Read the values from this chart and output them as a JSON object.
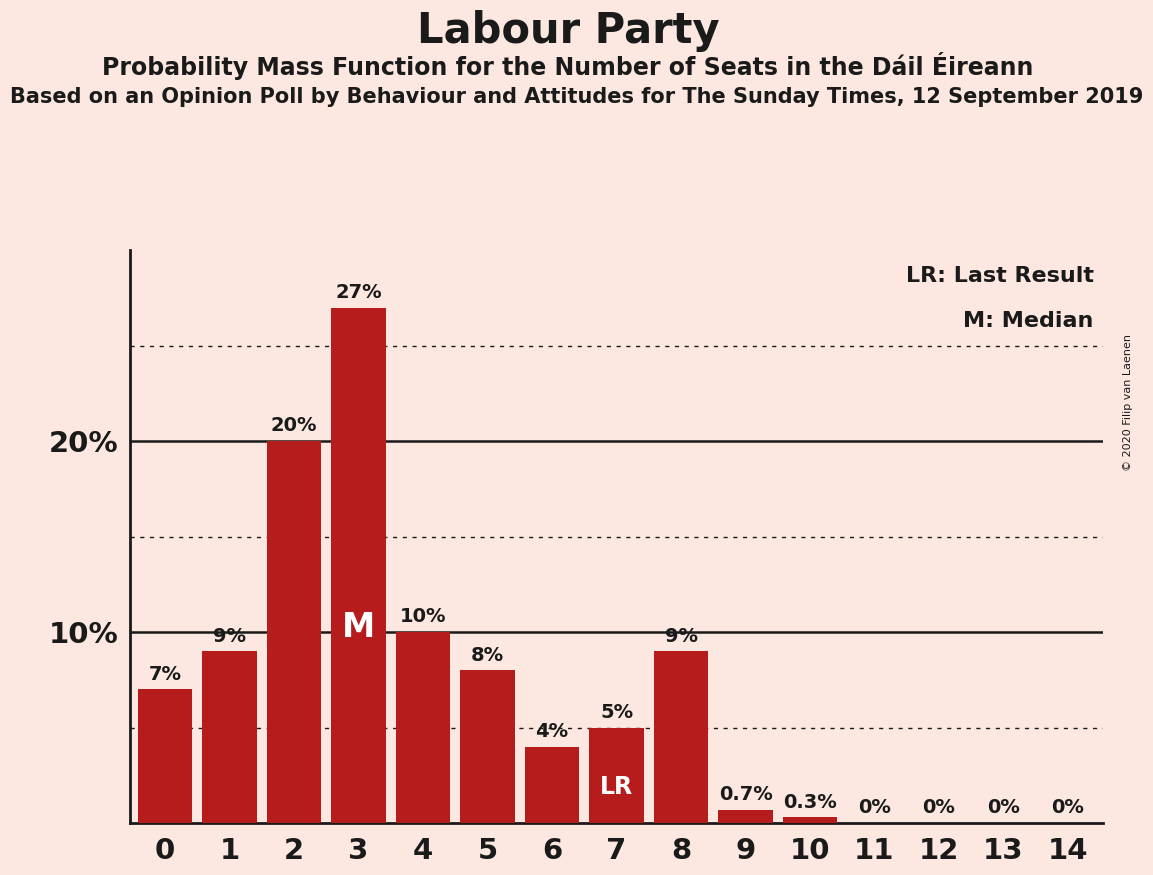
{
  "title": "Labour Party",
  "subtitle": "Probability Mass Function for the Number of Seats in the Dáil Éireann",
  "subtitle2": "Based on an Opinion Poll by Behaviour and Attitudes for The Sunday Times, 12 September 2019",
  "copyright": "© 2020 Filip van Laenen",
  "categories": [
    0,
    1,
    2,
    3,
    4,
    5,
    6,
    7,
    8,
    9,
    10,
    11,
    12,
    13,
    14
  ],
  "values": [
    7,
    9,
    20,
    27,
    10,
    8,
    4,
    5,
    9,
    0.7,
    0.3,
    0,
    0,
    0,
    0
  ],
  "bar_color": "#b71c1c",
  "background_color": "#fce8e0",
  "text_color": "#1a1a1a",
  "median_bar": 3,
  "lr_bar": 7,
  "dotted_lines": [
    5,
    15,
    25
  ],
  "solid_lines": [
    10,
    20
  ],
  "ylim": [
    0,
    30
  ],
  "legend_lr": "LR: Last Result",
  "legend_m": "M: Median",
  "title_fontsize": 30,
  "subtitle_fontsize": 17,
  "subtitle2_fontsize": 15,
  "bar_label_fontsize": 14,
  "tick_fontsize": 21,
  "inner_label_fontsize_M": 24,
  "inner_label_fontsize_LR": 17
}
